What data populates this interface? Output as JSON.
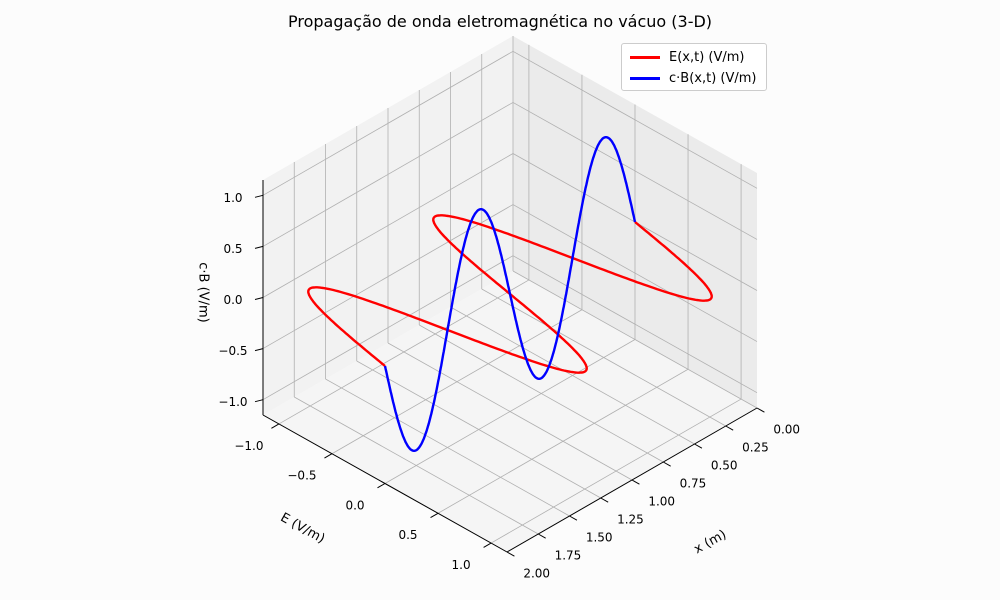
{
  "chart_data": {
    "type": "line",
    "projection": "3d",
    "title": "Propagação de onda eletromagnética no vácuo (3-D)",
    "xlabel": "E (V/m)",
    "ylabel": "x (m)",
    "zlabel": "c·B (V/m)",
    "xlim": [
      -1.15,
      1.15
    ],
    "ylim": [
      0,
      2
    ],
    "zlim": [
      -1.15,
      1.15
    ],
    "x_ticks": [
      "−1.0",
      "−0.5",
      "0.0",
      "0.5",
      "1.0"
    ],
    "y_ticks": [
      "0.00",
      "0.25",
      "0.50",
      "0.75",
      "1.00",
      "1.25",
      "1.50",
      "1.75",
      "2.00"
    ],
    "z_ticks": [
      "−1.0",
      "−0.5",
      "0.0",
      "0.5",
      "1.0"
    ],
    "grid": true,
    "legend_position": "top-right",
    "x_range": [
      0,
      2
    ],
    "wavelength": 1,
    "series": [
      {
        "name": "E(x,t) (V/m)",
        "color": "#ff0000",
        "component": "E",
        "amplitude": 1
      },
      {
        "name": "c·B(x,t) (V/m)",
        "color": "#0000ff",
        "component": "B",
        "amplitude": 1
      }
    ]
  }
}
